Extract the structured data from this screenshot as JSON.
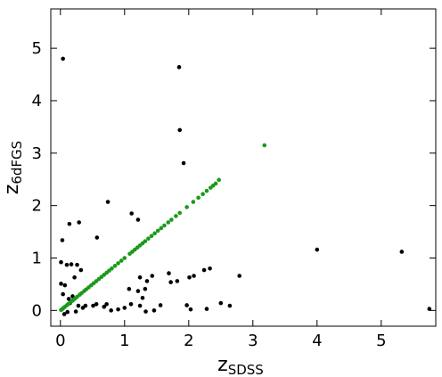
{
  "chart_data": {
    "type": "scatter",
    "xlabel": "z",
    "xlabel_sub": "SDSS",
    "ylabel": "z",
    "ylabel_sub": "6dFGS",
    "xlim": [
      -0.15,
      5.85
    ],
    "ylim": [
      -0.3,
      5.75
    ],
    "xticks": [
      0,
      1,
      2,
      3,
      4,
      5
    ],
    "yticks": [
      0,
      1,
      2,
      3,
      4,
      5
    ],
    "series": [
      {
        "color": "#000000",
        "x": [
          0.04,
          1.85,
          1.86,
          1.92,
          0.74,
          1.11,
          1.21,
          0.14,
          0.29,
          0.03,
          0.57,
          4.0,
          5.32,
          0.01,
          0.1,
          0.17,
          0.26,
          0.32,
          0.22,
          0.01,
          0.07,
          1.24,
          1.35,
          1.43,
          1.69,
          2.01,
          2.08,
          2.24,
          2.33,
          2.79,
          1.72,
          1.82,
          1.07,
          1.21,
          1.32,
          1.28,
          1.1,
          1.24,
          1.33,
          1.46,
          1.56,
          1.97,
          2.03,
          2.28,
          2.5,
          2.64,
          5.75,
          0.51,
          0.68,
          0.79,
          0.9,
          1.0,
          0.39,
          0.28,
          0.15,
          0.06,
          0.11,
          0.24,
          0.35,
          0.04,
          0.13,
          0.19,
          0.56,
          0.72
        ],
        "values": [
          4.8,
          4.64,
          3.44,
          2.81,
          2.07,
          1.85,
          1.73,
          1.65,
          1.68,
          1.34,
          1.39,
          1.16,
          1.12,
          0.92,
          0.87,
          0.88,
          0.87,
          0.77,
          0.63,
          0.51,
          0.48,
          0.63,
          0.56,
          0.66,
          0.71,
          0.63,
          0.66,
          0.77,
          0.8,
          0.66,
          0.54,
          0.56,
          0.41,
          0.37,
          0.41,
          0.24,
          0.12,
          0.09,
          -0.02,
          0.0,
          0.1,
          0.1,
          0.02,
          0.03,
          0.14,
          0.09,
          0.03,
          0.09,
          0.07,
          0.0,
          0.02,
          0.05,
          0.09,
          0.09,
          0.14,
          -0.07,
          -0.03,
          -0.02,
          0.05,
          0.31,
          0.22,
          0.27,
          0.12,
          0.12
        ]
      },
      {
        "color": "#1a9a1a",
        "x": [
          0.01,
          0.03,
          0.05,
          0.07,
          0.1,
          0.12,
          0.15,
          0.18,
          0.2,
          0.23,
          0.26,
          0.3,
          0.33,
          0.37,
          0.4,
          0.44,
          0.48,
          0.52,
          0.56,
          0.6,
          0.64,
          0.68,
          0.72,
          0.76,
          0.8,
          0.85,
          0.9,
          0.95,
          1.0,
          1.08,
          1.12,
          1.16,
          1.2,
          1.24,
          1.28,
          1.32,
          1.37,
          1.42,
          1.47,
          1.52,
          1.57,
          1.62,
          1.68,
          1.73,
          1.8,
          1.86,
          1.97,
          2.07,
          2.15,
          2.22,
          2.28,
          2.34,
          2.38,
          2.42,
          2.47,
          3.18
        ],
        "values": [
          0.01,
          0.03,
          0.05,
          0.07,
          0.1,
          0.12,
          0.15,
          0.18,
          0.2,
          0.23,
          0.26,
          0.3,
          0.33,
          0.37,
          0.4,
          0.44,
          0.48,
          0.52,
          0.56,
          0.6,
          0.64,
          0.68,
          0.72,
          0.76,
          0.8,
          0.85,
          0.9,
          0.95,
          1.0,
          1.08,
          1.12,
          1.16,
          1.2,
          1.24,
          1.28,
          1.32,
          1.37,
          1.42,
          1.47,
          1.52,
          1.57,
          1.62,
          1.68,
          1.73,
          1.8,
          1.86,
          1.97,
          2.07,
          2.15,
          2.22,
          2.28,
          2.34,
          2.38,
          2.42,
          2.49,
          3.15
        ]
      }
    ]
  }
}
